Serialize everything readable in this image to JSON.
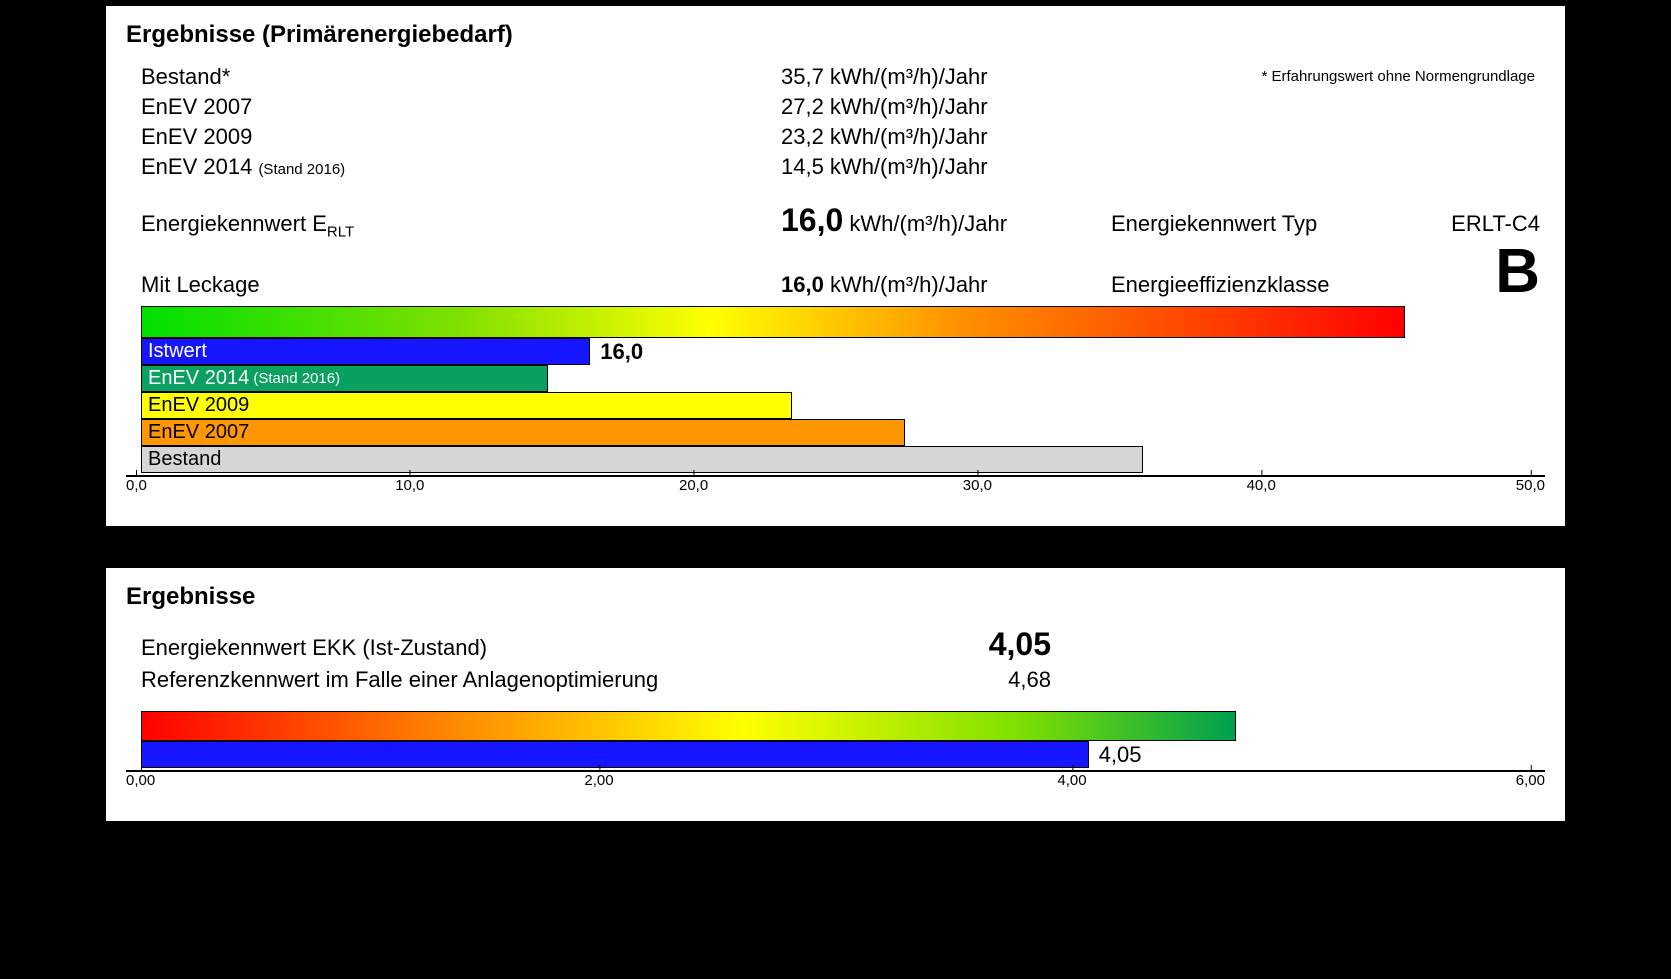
{
  "panel1": {
    "title": "Ergebnisse (Primärenergiebedarf)",
    "note": "* Erfahrungswert ohne Normengrundlage",
    "unit": "kWh/(m³/h)/Jahr",
    "rows": [
      {
        "label": "Bestand*",
        "sub": "",
        "value": "35,7"
      },
      {
        "label": "EnEV 2007",
        "sub": "",
        "value": "27,2"
      },
      {
        "label": "EnEV 2009",
        "sub": "",
        "value": "23,2"
      },
      {
        "label": "EnEV 2014",
        "sub": "(Stand 2016)",
        "value": "14,5"
      }
    ],
    "kennwert_label_html": "Energiekennwert E<sub>RLT</sub>",
    "kennwert_label": "Energiekennwert E",
    "kennwert_sub": "RLT",
    "kennwert_value": "16,0",
    "leckage_label": "Mit Leckage",
    "leckage_value": "16,0",
    "typ_label": "Energiekennwert Typ",
    "typ_value": "ERLT-C4",
    "class_label": "Energieeffizienzklasse",
    "class_value": "B",
    "chart": {
      "xmin": 0.0,
      "xmax": 50.0,
      "ticks": [
        "0,0",
        "10,0",
        "20,0",
        "30,0",
        "40,0",
        "50,0"
      ],
      "gradient_max": 45.0,
      "gradient_css": "linear-gradient(to right, #00e000 0%, #7fe000 25%, #ffff00 45%, #ff9000 65%, #ff0000 100%)",
      "bars": [
        {
          "label": "Istwert",
          "sub": "",
          "value": 16.0,
          "color": "#1515ff",
          "text_color": "#ffffff",
          "after": "16,0"
        },
        {
          "label": "EnEV 2014",
          "sub": "(Stand 2016)",
          "value": 14.5,
          "color": "#0aa060",
          "text_color": "#ffffff",
          "after": ""
        },
        {
          "label": "EnEV 2009",
          "sub": "",
          "value": 23.2,
          "color": "#ffff00",
          "text_color": "#000000",
          "after": ""
        },
        {
          "label": "EnEV 2007",
          "sub": "",
          "value": 27.2,
          "color": "#ff9800",
          "text_color": "#000000",
          "after": ""
        },
        {
          "label": "Bestand",
          "sub": "",
          "value": 35.7,
          "color": "#d6d6d6",
          "text_color": "#000000",
          "after": ""
        }
      ]
    }
  },
  "panel2": {
    "title": "Ergebnisse",
    "rows": [
      {
        "label": "Energiekennwert EKK (Ist-Zustand)",
        "value": "4,05",
        "bold": true
      },
      {
        "label": "Referenzkennwert im Falle einer Anlagenoptimierung",
        "value": "4,68",
        "bold": false
      }
    ],
    "chart": {
      "xmin": 0.0,
      "xmax": 6.0,
      "ticks": [
        "0,00",
        "2,00",
        "4,00",
        "6,00"
      ],
      "gradient_max": 4.68,
      "gradient_css": "linear-gradient(to right, #ff0000 0%, #ff9000 30%, #ffff00 55%, #7fe000 80%, #00a050 100%)",
      "bar": {
        "value": 4.05,
        "color": "#1515ff",
        "after": "4,05"
      }
    }
  }
}
